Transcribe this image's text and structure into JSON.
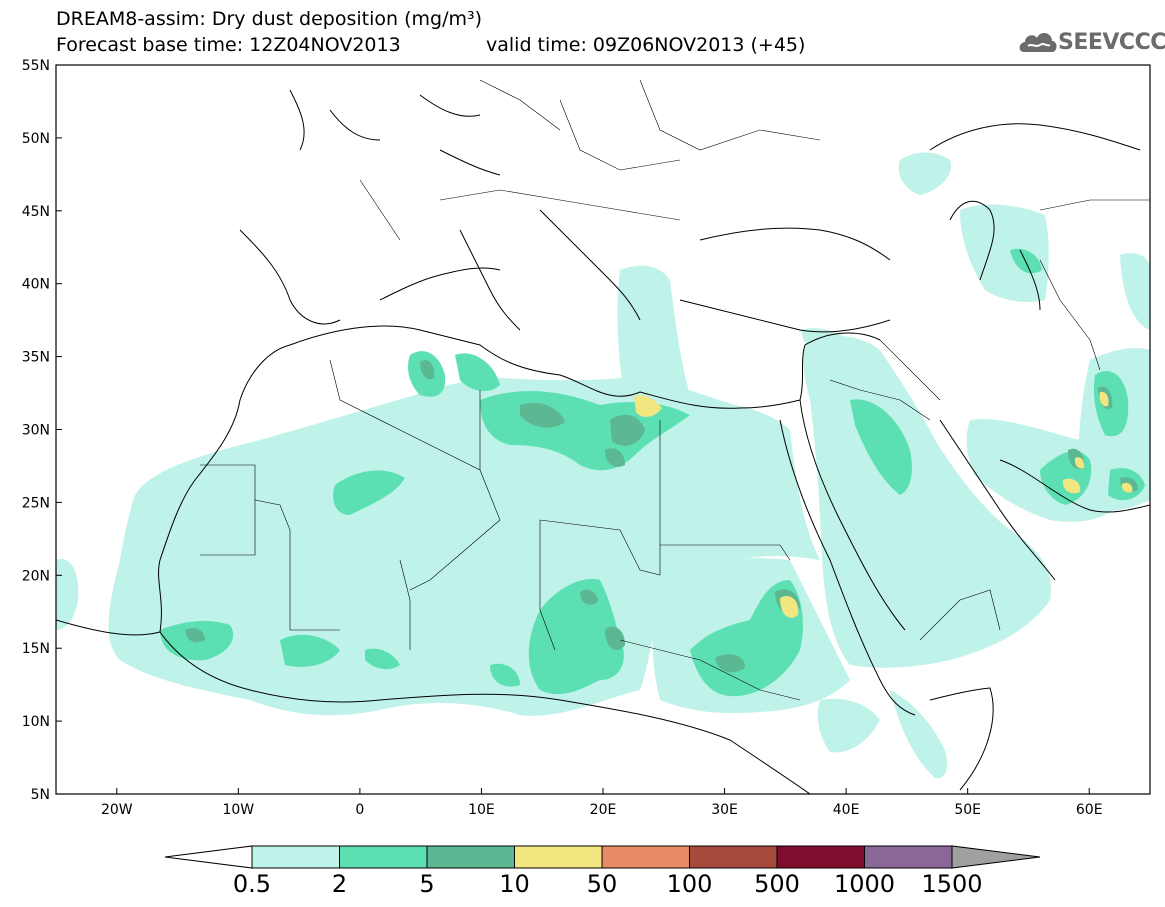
{
  "title": {
    "line1": "DREAM8-assim: Dry dust deposition (mg/m³)",
    "base_time": "Forecast base time: 12Z04NOV2013",
    "valid_time": "valid time: 09Z06NOV2013 (+45)"
  },
  "logo": {
    "text": "SEEVCCC",
    "icon": "cloud-icon"
  },
  "map": {
    "lon_range": [
      -25,
      65
    ],
    "lat_range": [
      5,
      55
    ],
    "lat_ticks": [
      "5N",
      "10N",
      "15N",
      "20N",
      "25N",
      "30N",
      "35N",
      "40N",
      "45N",
      "50N",
      "55N"
    ],
    "lon_ticks": [
      "20W",
      "10W",
      "0",
      "10E",
      "20E",
      "30E",
      "40E",
      "50E",
      "60E"
    ],
    "lat_tick_values": [
      5,
      10,
      15,
      20,
      25,
      30,
      35,
      40,
      45,
      50,
      55
    ],
    "lon_tick_values": [
      -20,
      -10,
      0,
      10,
      20,
      30,
      40,
      50,
      60
    ]
  },
  "colorbar": {
    "labels": [
      "0.5",
      "2",
      "5",
      "10",
      "50",
      "100",
      "500",
      "1000",
      "1500"
    ],
    "colors": [
      "#bff2e8",
      "#5ce0b3",
      "#5cb893",
      "#f2e680",
      "#e88a66",
      "#a64a3c",
      "#800d2e",
      "#8a6699"
    ],
    "under_color": "#ffffff",
    "over_color": "#a0a0a0"
  },
  "legend_colors": {
    "light": "#bff2e8",
    "medium": "#5ce0b3",
    "dark": "#5cb893",
    "yellow": "#f2e680"
  }
}
